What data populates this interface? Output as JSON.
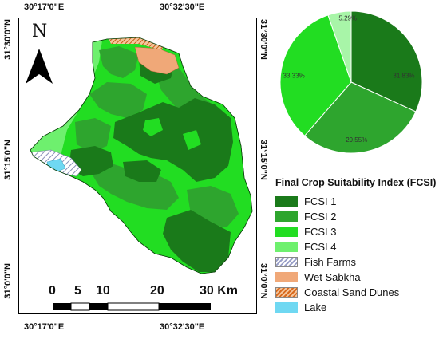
{
  "map": {
    "coords": {
      "top_left": "30°17'0\"E",
      "top_right": "30°32'30\"E",
      "bottom_left": "30°17'0\"E",
      "bottom_right": "30°32'30\"E",
      "left_top": "31°30'0\"N",
      "left_mid": "31°15'0\"N",
      "left_bottom": "31°0'0\"N",
      "right_top": "31°30'0\"N",
      "right_mid": "31°15'0\"N",
      "right_bottom": "31°0'0\"N"
    },
    "north_label": "N",
    "scale_labels": [
      "0",
      "5",
      "10",
      "20",
      "30 Km"
    ],
    "colors": {
      "fcsi1": "#1a7a1a",
      "fcsi2": "#2ea52e",
      "fcsi3": "#22dd22",
      "fcsi4": "#6ef06e",
      "wet_sabkha": "#f0a878",
      "lake": "#6fd8f2"
    }
  },
  "chart_data": {
    "type": "pie",
    "categories": [
      "FCSI 1",
      "FCSI 2",
      "FCSI 3",
      "FCSI 4"
    ],
    "values": [
      31.83,
      29.55,
      33.33,
      5.29
    ],
    "labels": [
      "31.83%",
      "29.55%",
      "33.33%",
      "5.29%"
    ],
    "colors": [
      "#1a7a1a",
      "#2ea52e",
      "#22dd22",
      "#a8f5a8"
    ]
  },
  "legend": {
    "title": "Final Crop Suitability Index (FCSI)",
    "items": [
      {
        "label": "FCSI 1",
        "color": "#1a7a1a",
        "pattern": "solid"
      },
      {
        "label": "FCSI 2",
        "color": "#2ea52e",
        "pattern": "solid"
      },
      {
        "label": "FCSI 3",
        "color": "#22dd22",
        "pattern": "solid"
      },
      {
        "label": "FCSI 4",
        "color": "#6ef06e",
        "pattern": "solid"
      },
      {
        "label": "Fish Farms",
        "color": "#9aa0c8",
        "pattern": "hatch"
      },
      {
        "label": "Wet Sabkha",
        "color": "#f0a878",
        "pattern": "solid"
      },
      {
        "label": "Coastal Sand Dunes",
        "color": "#d86a1e",
        "pattern": "hatch-orange"
      },
      {
        "label": "Lake",
        "color": "#6fd8f2",
        "pattern": "solid"
      }
    ]
  }
}
